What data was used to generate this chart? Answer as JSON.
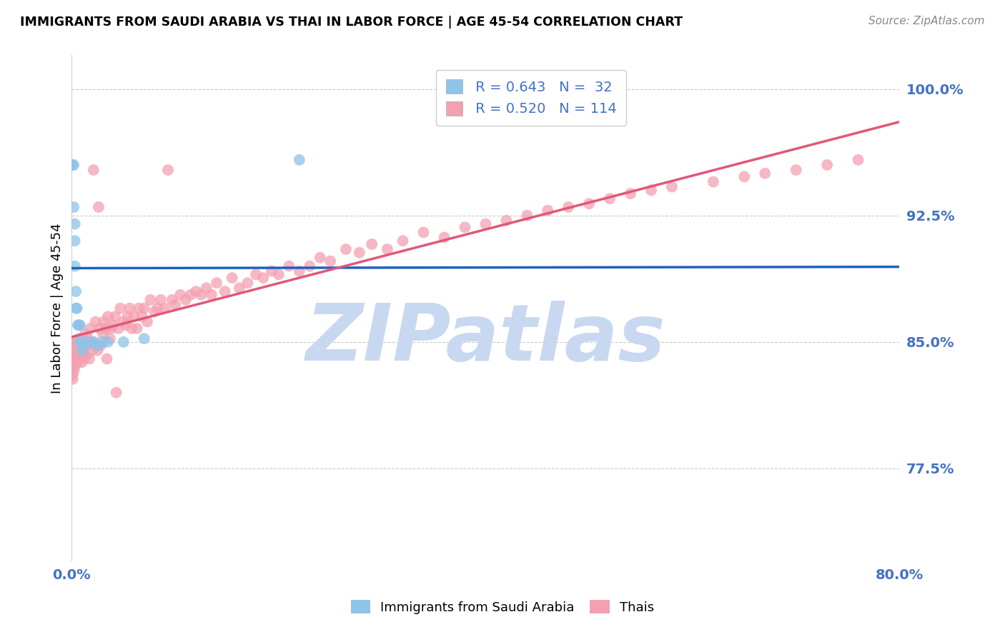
{
  "title": "IMMIGRANTS FROM SAUDI ARABIA VS THAI IN LABOR FORCE | AGE 45-54 CORRELATION CHART",
  "source": "Source: ZipAtlas.com",
  "ylabel": "In Labor Force | Age 45-54",
  "xlim": [
    0.0,
    0.8
  ],
  "ylim": [
    0.72,
    1.02
  ],
  "yticks": [
    0.775,
    0.85,
    0.925,
    1.0
  ],
  "ytick_labels": [
    "77.5%",
    "85.0%",
    "92.5%",
    "100.0%"
  ],
  "legend_blue_r": "R = 0.643",
  "legend_blue_n": "N =  32",
  "legend_pink_r": "R = 0.520",
  "legend_pink_n": "N = 114",
  "blue_color": "#8ec4e8",
  "pink_color": "#f4a0b0",
  "blue_line_color": "#2060c0",
  "pink_line_color": "#e05878",
  "axis_color": "#4472c4",
  "watermark_color": "#c8d8f0",
  "saudi_x": [
    0.0,
    0.0,
    0.0,
    0.0,
    0.0,
    0.0,
    0.0,
    0.0,
    0.002,
    0.002,
    0.003,
    0.003,
    0.003,
    0.004,
    0.004,
    0.005,
    0.006,
    0.007,
    0.008,
    0.008,
    0.01,
    0.01,
    0.012,
    0.015,
    0.02,
    0.022,
    0.025,
    0.03,
    0.035,
    0.05,
    0.07,
    0.22
  ],
  "saudi_y": [
    0.955,
    0.955,
    0.955,
    0.955,
    0.955,
    0.955,
    0.955,
    0.955,
    0.955,
    0.93,
    0.92,
    0.91,
    0.895,
    0.88,
    0.87,
    0.87,
    0.86,
    0.86,
    0.86,
    0.85,
    0.85,
    0.845,
    0.848,
    0.85,
    0.85,
    0.85,
    0.848,
    0.85,
    0.85,
    0.85,
    0.852,
    0.958
  ],
  "thai_x": [
    0.0,
    0.0,
    0.0,
    0.0,
    0.0,
    0.001,
    0.001,
    0.002,
    0.002,
    0.003,
    0.003,
    0.004,
    0.004,
    0.005,
    0.005,
    0.006,
    0.007,
    0.007,
    0.008,
    0.009,
    0.01,
    0.01,
    0.011,
    0.012,
    0.013,
    0.014,
    0.015,
    0.016,
    0.017,
    0.018,
    0.02,
    0.021,
    0.022,
    0.023,
    0.025,
    0.026,
    0.027,
    0.028,
    0.03,
    0.031,
    0.033,
    0.034,
    0.035,
    0.037,
    0.038,
    0.04,
    0.042,
    0.043,
    0.045,
    0.047,
    0.05,
    0.052,
    0.054,
    0.056,
    0.058,
    0.06,
    0.063,
    0.065,
    0.068,
    0.07,
    0.073,
    0.076,
    0.08,
    0.083,
    0.086,
    0.09,
    0.093,
    0.097,
    0.1,
    0.105,
    0.11,
    0.115,
    0.12,
    0.125,
    0.13,
    0.135,
    0.14,
    0.148,
    0.155,
    0.162,
    0.17,
    0.178,
    0.185,
    0.193,
    0.2,
    0.21,
    0.22,
    0.23,
    0.24,
    0.25,
    0.265,
    0.278,
    0.29,
    0.305,
    0.32,
    0.34,
    0.36,
    0.38,
    0.4,
    0.42,
    0.44,
    0.46,
    0.48,
    0.5,
    0.52,
    0.54,
    0.56,
    0.58,
    0.62,
    0.65,
    0.67,
    0.7,
    0.73,
    0.76
  ],
  "thai_y": [
    0.84,
    0.835,
    0.83,
    0.845,
    0.85,
    0.828,
    0.838,
    0.832,
    0.842,
    0.835,
    0.845,
    0.838,
    0.848,
    0.84,
    0.85,
    0.838,
    0.843,
    0.852,
    0.84,
    0.845,
    0.838,
    0.85,
    0.843,
    0.84,
    0.855,
    0.842,
    0.848,
    0.852,
    0.84,
    0.858,
    0.845,
    0.952,
    0.848,
    0.862,
    0.845,
    0.93,
    0.858,
    0.848,
    0.855,
    0.862,
    0.858,
    0.84,
    0.865,
    0.852,
    0.858,
    0.86,
    0.865,
    0.82,
    0.858,
    0.87,
    0.862,
    0.86,
    0.865,
    0.87,
    0.858,
    0.865,
    0.858,
    0.87,
    0.865,
    0.87,
    0.862,
    0.875,
    0.868,
    0.87,
    0.875,
    0.87,
    0.952,
    0.875,
    0.872,
    0.878,
    0.875,
    0.878,
    0.88,
    0.878,
    0.882,
    0.878,
    0.885,
    0.88,
    0.888,
    0.882,
    0.885,
    0.89,
    0.888,
    0.892,
    0.89,
    0.895,
    0.892,
    0.895,
    0.9,
    0.898,
    0.905,
    0.903,
    0.908,
    0.905,
    0.91,
    0.915,
    0.912,
    0.918,
    0.92,
    0.922,
    0.925,
    0.928,
    0.93,
    0.932,
    0.935,
    0.938,
    0.94,
    0.942,
    0.945,
    0.948,
    0.95,
    0.952,
    0.955,
    0.958
  ]
}
